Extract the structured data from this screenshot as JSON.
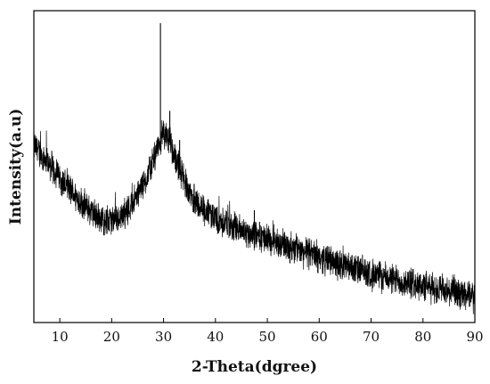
{
  "chart_data": {
    "type": "line",
    "title": "",
    "xlabel": "2-Theta(dgree)",
    "ylabel": "Intensity(a.u)",
    "xlim": [
      5,
      90
    ],
    "x_ticks": [
      10,
      20,
      30,
      40,
      50,
      60,
      70,
      80,
      90
    ],
    "x_tick_labels": [
      "10",
      "20",
      "30",
      "40",
      "50",
      "60",
      "70",
      "80",
      "90"
    ],
    "y_ticks_shown": false,
    "grid": false,
    "legend": "none",
    "colors": {
      "line": "#000000",
      "axes": "#000000",
      "background": "#ffffff"
    },
    "profile": [
      {
        "x": 5,
        "y": 0.58
      },
      {
        "x": 8,
        "y": 0.52
      },
      {
        "x": 11,
        "y": 0.45
      },
      {
        "x": 14,
        "y": 0.39
      },
      {
        "x": 17,
        "y": 0.34
      },
      {
        "x": 19,
        "y": 0.32
      },
      {
        "x": 21,
        "y": 0.33
      },
      {
        "x": 23,
        "y": 0.36
      },
      {
        "x": 25,
        "y": 0.41
      },
      {
        "x": 27,
        "y": 0.48
      },
      {
        "x": 28.5,
        "y": 0.55
      },
      {
        "x": 29.5,
        "y": 0.61
      },
      {
        "x": 30.5,
        "y": 0.62
      },
      {
        "x": 31.5,
        "y": 0.58
      },
      {
        "x": 33,
        "y": 0.51
      },
      {
        "x": 35,
        "y": 0.42
      },
      {
        "x": 37,
        "y": 0.37
      },
      {
        "x": 40,
        "y": 0.33
      },
      {
        "x": 45,
        "y": 0.29
      },
      {
        "x": 50,
        "y": 0.26
      },
      {
        "x": 55,
        "y": 0.23
      },
      {
        "x": 60,
        "y": 0.2
      },
      {
        "x": 65,
        "y": 0.17
      },
      {
        "x": 70,
        "y": 0.14
      },
      {
        "x": 75,
        "y": 0.12
      },
      {
        "x": 80,
        "y": 0.1
      },
      {
        "x": 85,
        "y": 0.08
      },
      {
        "x": 90,
        "y": 0.06
      }
    ],
    "peaks": [
      {
        "x": 29.4,
        "y": 1.0
      },
      {
        "x": 31.2,
        "y": 0.7
      },
      {
        "x": 33.1,
        "y": 0.6
      },
      {
        "x": 35.9,
        "y": 0.45
      },
      {
        "x": 39.4,
        "y": 0.37
      },
      {
        "x": 47.5,
        "y": 0.36
      },
      {
        "x": 48.5,
        "y": 0.32
      }
    ],
    "noise_amplitude": 0.045
  }
}
